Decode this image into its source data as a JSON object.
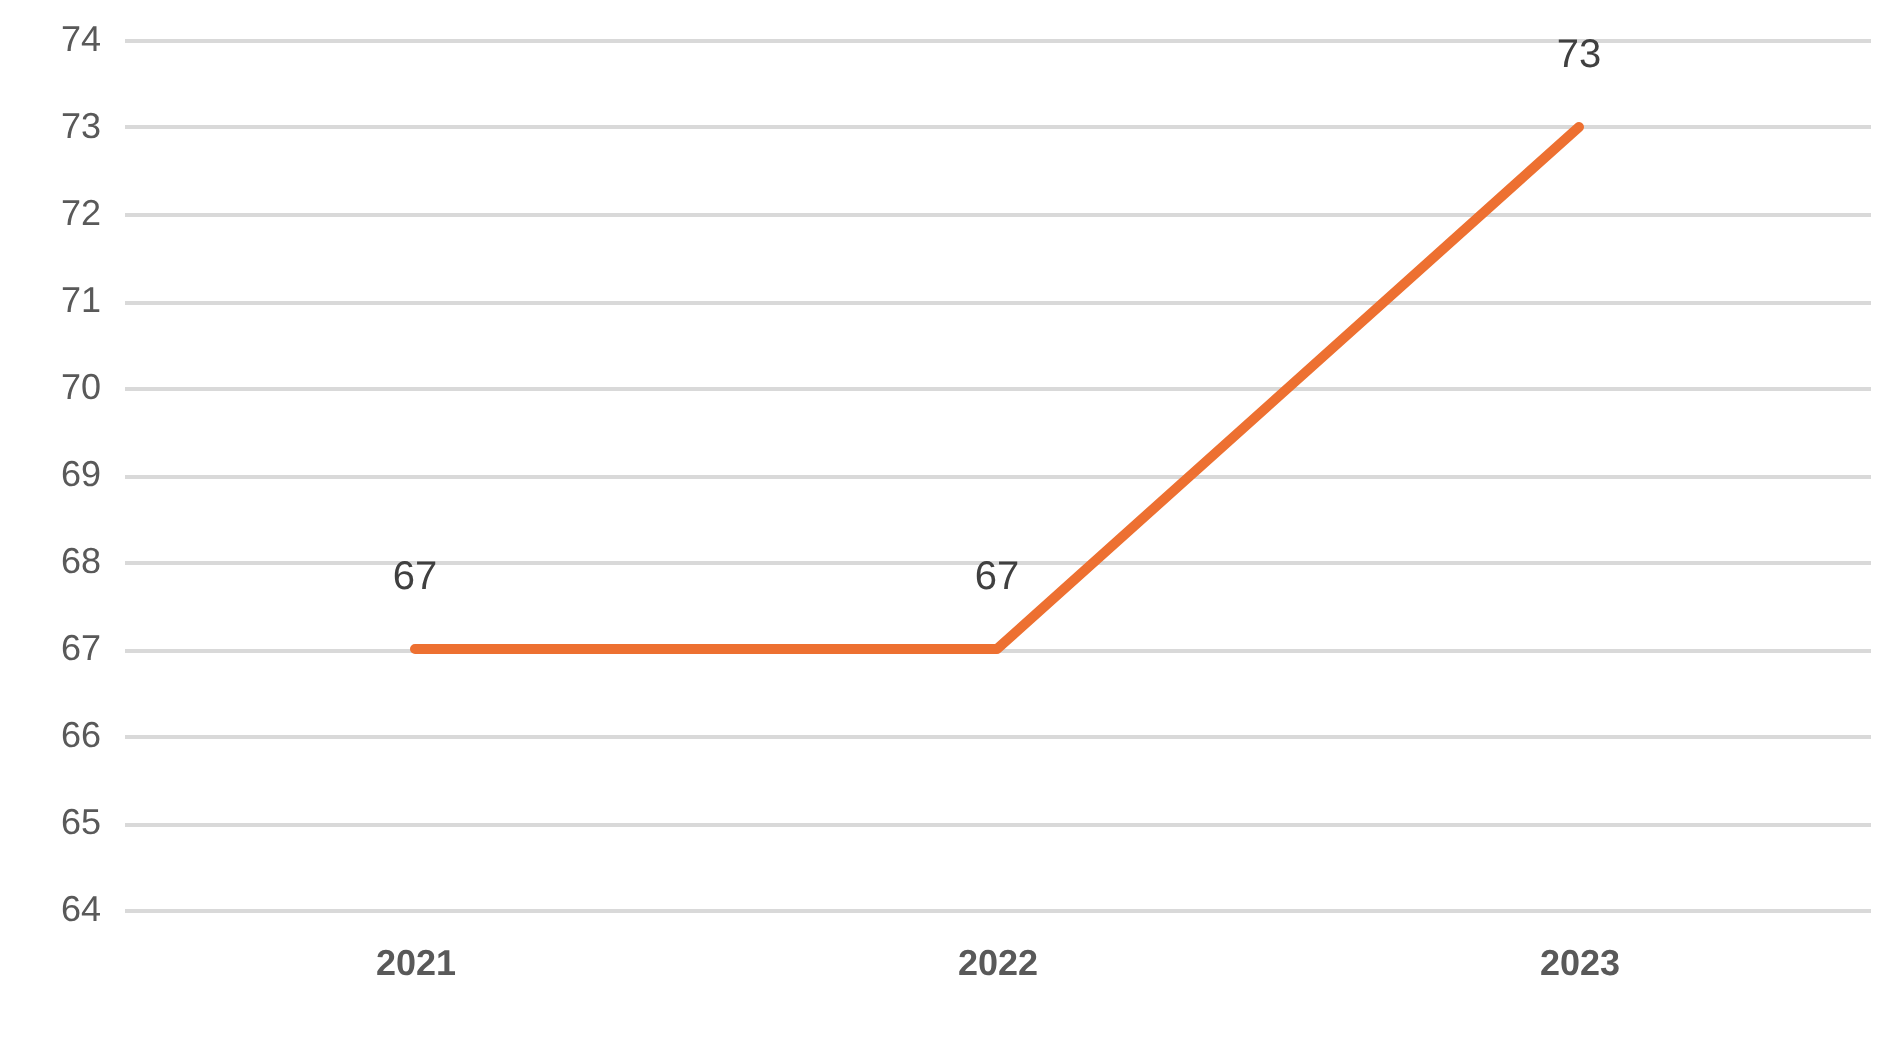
{
  "chart_data": {
    "type": "line",
    "categories": [
      "2021",
      "2022",
      "2023"
    ],
    "series": [
      {
        "color": "#ed7031",
        "values": [
          67,
          67,
          73
        ]
      }
    ],
    "ylim": [
      64,
      74
    ],
    "yticks": [
      64,
      65,
      66,
      67,
      68,
      69,
      70,
      71,
      72,
      73,
      74
    ],
    "grid": "y",
    "data_labels": true,
    "marker": "none",
    "line_style": "solid"
  }
}
